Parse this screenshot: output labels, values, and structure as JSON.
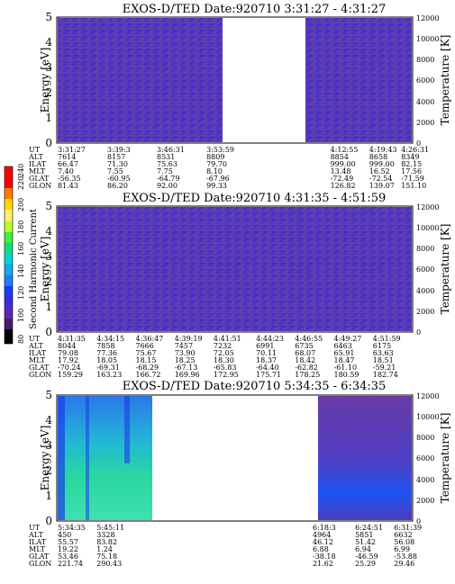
{
  "figure": {
    "colorbar": {
      "label": "Second Harmonic Current",
      "ticks": [
        "80",
        "100",
        "120",
        "140",
        "160",
        "180",
        "200",
        "220",
        "240"
      ]
    }
  },
  "chart_data": [
    {
      "type": "heatmap",
      "title": "EXOS-D/TED   Date:920710   3:31:27 - 4:31:27",
      "ylabel": "Energy [eV]",
      "y2label": "Temperature [K]",
      "ylim": [
        0,
        5
      ],
      "yticks": [
        "0",
        "1",
        "2",
        "3",
        "4",
        "5"
      ],
      "y2lim": [
        0,
        12000
      ],
      "y2ticks": [
        "0",
        "2000",
        "4000",
        "6000",
        "8000",
        "10000",
        "12000"
      ],
      "data_gaps": [
        [
          0.5,
          0.76
        ]
      ],
      "dominant_color": "#5a38b8",
      "ephemeris_labels": [
        "UT",
        "ALT",
        "ILAT",
        "MLT",
        "GLAT",
        "GLON"
      ],
      "ephemeris": [
        {
          "f": 0.0,
          "vals": [
            "3:31:27",
            "7614",
            "66.47",
            "7.40",
            "-56.35",
            "81.43"
          ]
        },
        {
          "f": 0.14,
          "vals": [
            "3:39:3",
            "8157",
            "71.30",
            "7.55",
            "-60.95",
            "86.20"
          ]
        },
        {
          "f": 0.28,
          "vals": [
            "3:46:31",
            "8531",
            "75.63",
            "7.75",
            "-64.79",
            "92.00"
          ]
        },
        {
          "f": 0.42,
          "vals": [
            "3:53:59",
            "8809",
            "79.70",
            "8.10",
            "-67.96",
            "99.33"
          ]
        },
        {
          "f": 0.77,
          "vals": [
            "4:12:55",
            "8854",
            "999.00",
            "13.48",
            "-72.49",
            "126.82"
          ]
        },
        {
          "f": 0.88,
          "vals": [
            "4:19:43",
            "8658",
            "999.00",
            "16.52",
            "-72.54",
            "139.07"
          ]
        },
        {
          "f": 0.97,
          "vals": [
            "4:26:31",
            "8349",
            "82.15",
            "17.56",
            "-71.59",
            "151.10"
          ]
        }
      ]
    },
    {
      "type": "heatmap",
      "title": "EXOS-D/TED   Date:920710   4:31:35 - 4:51:59",
      "ylabel": "Energy [eV]",
      "y2label": "Temperature [K]",
      "ylim": [
        0,
        5
      ],
      "yticks": [
        "0",
        "1",
        "2",
        "3",
        "4",
        "5"
      ],
      "y2lim": [
        0,
        12000
      ],
      "y2ticks": [
        "0",
        "2000",
        "4000",
        "6000",
        "8000",
        "10000",
        "12000"
      ],
      "data_gaps": [],
      "dominant_color": "#5a38b8",
      "ephemeris_labels": [
        "UT",
        "ALT",
        "ILAT",
        "MLT",
        "GLAT",
        "GLON"
      ],
      "ephemeris": [
        {
          "f": 0.0,
          "vals": [
            "4:31:35",
            "8044",
            "79.08",
            "17.92",
            "-70.24",
            "159.29"
          ]
        },
        {
          "f": 0.11,
          "vals": [
            "4:34:15",
            "7858",
            "77.36",
            "18.05",
            "-69.31",
            "163.23"
          ]
        },
        {
          "f": 0.22,
          "vals": [
            "4:36:47",
            "7666",
            "75.67",
            "18.15",
            "-68.29",
            "166.72"
          ]
        },
        {
          "f": 0.33,
          "vals": [
            "4:39:19",
            "7457",
            "73.90",
            "18.25",
            "-67.13",
            "169.96"
          ]
        },
        {
          "f": 0.44,
          "vals": [
            "4:41:51",
            "7232",
            "72.05",
            "18.30",
            "-65.83",
            "172.95"
          ]
        },
        {
          "f": 0.56,
          "vals": [
            "4:44:23",
            "6991",
            "70.11",
            "18.37",
            "-64.40",
            "175.71"
          ]
        },
        {
          "f": 0.67,
          "vals": [
            "4:46:55",
            "6735",
            "68.07",
            "18.42",
            "-62.82",
            "178.25"
          ]
        },
        {
          "f": 0.78,
          "vals": [
            "4:49:27",
            "6463",
            "65.91",
            "18.47",
            "-61.10",
            "180.59"
          ]
        },
        {
          "f": 0.89,
          "vals": [
            "4:51:59",
            "6175",
            "63.63",
            "18.51",
            "-59.21",
            "182.74"
          ]
        }
      ]
    },
    {
      "type": "heatmap",
      "title": "EXOS-D/TED   Date:920710   5:34:35 - 6:34:35",
      "ylabel": "Energy [eV]",
      "y2label": "Temperature [K]",
      "ylim": [
        0,
        5
      ],
      "yticks": [
        "0",
        "1",
        "2",
        "3",
        "4",
        "5"
      ],
      "y2lim": [
        0,
        12000
      ],
      "y2ticks": [
        "0",
        "2000",
        "4000",
        "6000",
        "8000",
        "10000",
        "12000"
      ],
      "data_gaps": [
        [
          0.31,
          0.73
        ]
      ],
      "dominant_color": "#20c0a0",
      "ephemeris_labels": [
        "UT",
        "ALT",
        "ILAT",
        "MLT",
        "GLAT",
        "GLON"
      ],
      "ephemeris": [
        {
          "f": 0.0,
          "vals": [
            "5:34:35",
            "450",
            "55.57",
            "19.22",
            "53.46",
            "221.74"
          ]
        },
        {
          "f": 0.11,
          "vals": [
            "5:45:11",
            "3328",
            "83.82",
            "1.24",
            "75.18",
            "290.43"
          ]
        },
        {
          "f": 0.72,
          "vals": [
            "6:18:3",
            "4964",
            "46.12",
            "6.88",
            "-38.18",
            "21.62"
          ]
        },
        {
          "f": 0.84,
          "vals": [
            "6:24:51",
            "5851",
            "51.42",
            "6.94",
            "-46.59",
            "25.29"
          ]
        },
        {
          "f": 0.95,
          "vals": [
            "6:31:39",
            "6632",
            "56.08",
            "6.99",
            "-53.88",
            "29.46"
          ]
        }
      ]
    }
  ]
}
